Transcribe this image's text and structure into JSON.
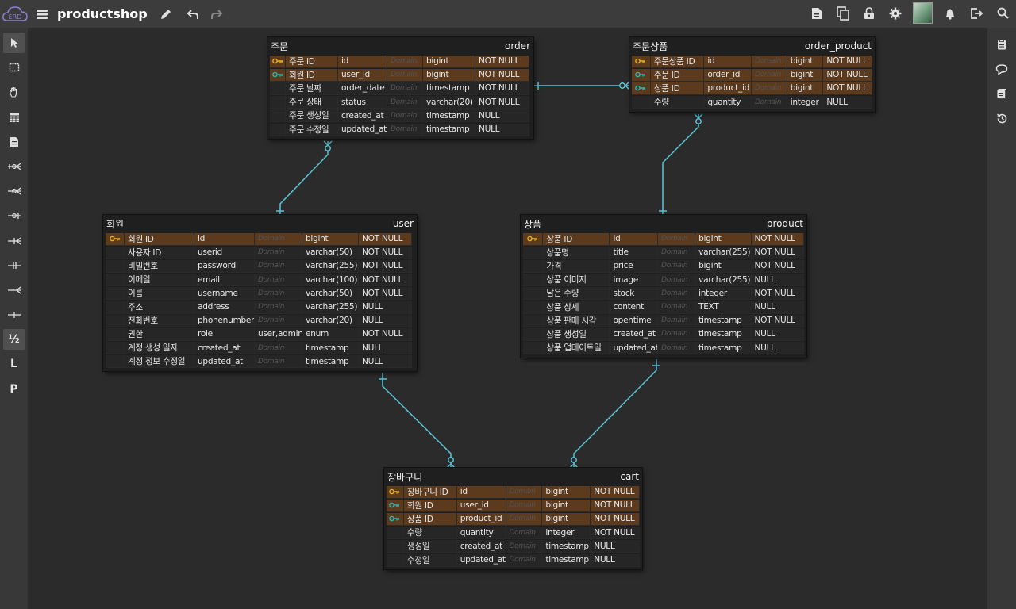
{
  "app": {
    "title": "productshop"
  },
  "topbar": {
    "right_icons": [
      "export-file-icon",
      "copy-icon",
      "lock-icon",
      "settings-gear-icon",
      "avatar",
      "bell-icon",
      "logout-icon",
      "search-icon"
    ]
  },
  "leftbar": {
    "tools": [
      "pointer",
      "select-rect",
      "hand",
      "table",
      "memo",
      "zero-one-n",
      "zero-n",
      "zero-one",
      "one-n",
      "one-only",
      "n",
      "one"
    ],
    "text_tools": [
      "½",
      "L",
      "P"
    ]
  },
  "rightbar": {
    "icons": [
      "clipboard-icon",
      "comment-icon",
      "list-icon",
      "history-icon"
    ]
  },
  "colors": {
    "pk": "#e8b21a",
    "fk": "#2cb5b5",
    "relation": "#5cc4d6",
    "key_row": "#5b3a1e"
  },
  "tables": {
    "order": {
      "logical": "주문",
      "physical": "order",
      "columns": [
        [
          "pk",
          "주문 ID",
          "id",
          "Domain",
          "bigint",
          "NOT NULL"
        ],
        [
          "fk",
          "회원 ID",
          "user_id",
          "Domain",
          "bigint",
          "NOT NULL"
        ],
        [
          "",
          "주문 날짜",
          "order_date",
          "Domain",
          "timestamp",
          "NOT NULL"
        ],
        [
          "",
          "주문 상태",
          "status",
          "Domain",
          "varchar(20)",
          "NOT NULL"
        ],
        [
          "",
          "주문 생성일",
          "created_at",
          "Domain",
          "timestamp",
          "NULL"
        ],
        [
          "",
          "주문 수정일",
          "updated_at",
          "Domain",
          "timestamp",
          "NULL"
        ]
      ]
    },
    "order_product": {
      "logical": "주문상품",
      "physical": "order_product",
      "columns": [
        [
          "pk",
          "주문상품 ID",
          "id",
          "Domain",
          "bigint",
          "NOT NULL"
        ],
        [
          "fk",
          "주문 ID",
          "order_id",
          "Domain",
          "bigint",
          "NOT NULL"
        ],
        [
          "fk",
          "상품 ID",
          "product_id",
          "Domain",
          "bigint",
          "NOT NULL"
        ],
        [
          "",
          "수량",
          "quantity",
          "Domain",
          "integer",
          "NULL"
        ]
      ]
    },
    "user": {
      "logical": "회원",
      "physical": "user",
      "columns": [
        [
          "pk",
          "회원 ID",
          "id",
          "Domain",
          "bigint",
          "NOT NULL"
        ],
        [
          "",
          "사용자 ID",
          "userid",
          "Domain",
          "varchar(50)",
          "NOT NULL"
        ],
        [
          "",
          "비밀번호",
          "password",
          "Domain",
          "varchar(255)",
          "NOT NULL"
        ],
        [
          "",
          "이메일",
          "email",
          "Domain",
          "varchar(100)",
          "NOT NULL"
        ],
        [
          "",
          "이름",
          "username",
          "Domain",
          "varchar(50)",
          "NOT NULL"
        ],
        [
          "",
          "주소",
          "address",
          "Domain",
          "varchar(255)",
          "NULL"
        ],
        [
          "",
          "전화번호",
          "phonenumber",
          "Domain",
          "varchar(20)",
          "NULL"
        ],
        [
          "",
          "권한",
          "role",
          "user,admin",
          "enum",
          "NOT NULL"
        ],
        [
          "",
          "계정 생성 일자",
          "created_at",
          "Domain",
          "timestamp",
          "NULL"
        ],
        [
          "",
          "계정 정보 수정일",
          "updated_at",
          "Domain",
          "timestamp",
          "NULL"
        ]
      ]
    },
    "product": {
      "logical": "상품",
      "physical": "product",
      "columns": [
        [
          "pk",
          "상품 ID",
          "id",
          "Domain",
          "bigint",
          "NOT NULL"
        ],
        [
          "",
          "상품명",
          "title",
          "Domain",
          "varchar(255)",
          "NOT NULL"
        ],
        [
          "",
          "가격",
          "price",
          "Domain",
          "bigint",
          "NOT NULL"
        ],
        [
          "",
          "상품 이미지",
          "image",
          "Domain",
          "varchar(255)",
          "NULL"
        ],
        [
          "",
          "남은 수량",
          "stock",
          "Domain",
          "integer",
          "NOT NULL"
        ],
        [
          "",
          "상품 상세",
          "content",
          "Domain",
          "TEXT",
          "NULL"
        ],
        [
          "",
          "상품 판매 시각",
          "opentime",
          "Domain",
          "timestamp",
          "NOT NULL"
        ],
        [
          "",
          "상품 생성일",
          "created_at",
          "Domain",
          "timestamp",
          "NULL"
        ],
        [
          "",
          "상품 업데이트일",
          "updated_at",
          "Domain",
          "timestamp",
          "NULL"
        ]
      ]
    },
    "cart": {
      "logical": "장바구니",
      "physical": "cart",
      "columns": [
        [
          "pk",
          "장바구니 ID",
          "id",
          "Domain",
          "bigint",
          "NOT NULL"
        ],
        [
          "fk",
          "회원 ID",
          "user_id",
          "Domain",
          "bigint",
          "NOT NULL"
        ],
        [
          "fk",
          "상품 ID",
          "product_id",
          "Domain",
          "bigint",
          "NOT NULL"
        ],
        [
          "",
          "수량",
          "quantity",
          "Domain",
          "integer",
          "NOT NULL"
        ],
        [
          "",
          "생성일",
          "created_at",
          "Domain",
          "timestamp",
          "NULL"
        ],
        [
          "",
          "수정일",
          "updated_at",
          "Domain",
          "timestamp",
          "NULL"
        ]
      ]
    }
  }
}
